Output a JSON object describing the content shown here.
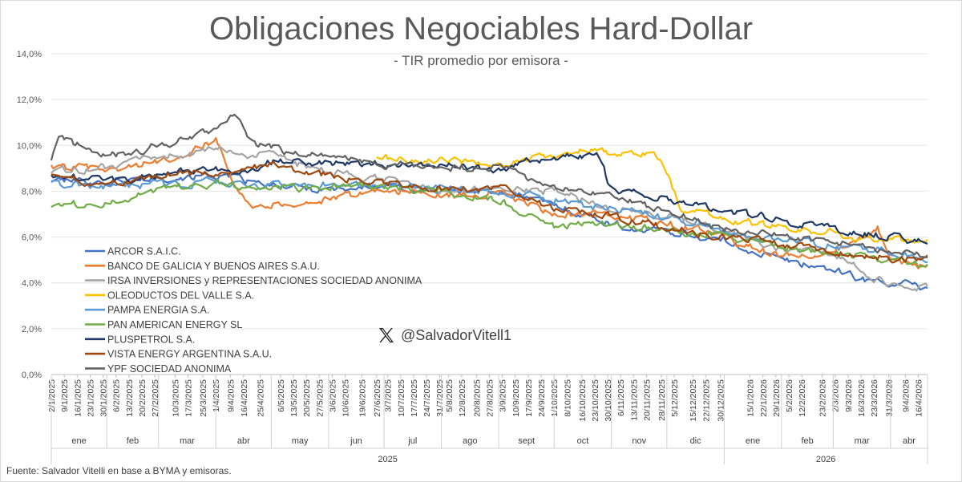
{
  "chart_data": {
    "type": "line",
    "title": "Obligaciones Negociables Hard-Dollar",
    "subtitle": "- TIR promedio por emisora -",
    "ylim": [
      0,
      14
    ],
    "yticks": [
      "0,0%",
      "2,0%",
      "4,0%",
      "6,0%",
      "8,0%",
      "10,0%",
      "12,0%",
      "14,0%"
    ],
    "ytick_values": [
      0,
      2,
      4,
      6,
      8,
      10,
      12,
      14
    ],
    "x_start": "2025-01-02",
    "x_end": "2026-04-21",
    "xticks": [
      "2/1/2025",
      "9/1/2025",
      "16/1/2025",
      "23/1/2025",
      "30/1/2025",
      "6/2/2025",
      "13/2/2025",
      "20/2/2025",
      "27/2/2025",
      "10/3/2025",
      "17/3/2025",
      "25/3/2025",
      "1/4/2025",
      "9/4/2025",
      "16/4/2025",
      "25/4/2025",
      "6/5/2025",
      "13/5/2025",
      "20/5/2025",
      "27/5/2025",
      "3/6/2025",
      "10/6/2025",
      "19/6/2025",
      "27/6/2025",
      "3/7/2025",
      "10/7/2025",
      "17/7/2025",
      "24/7/2025",
      "31/7/2025",
      "5/8/2025",
      "12/8/2025",
      "20/8/2025",
      "27/8/2025",
      "3/9/2025",
      "10/9/2025",
      "17/9/2025",
      "24/9/2025",
      "1/10/2025",
      "8/10/2025",
      "16/10/2025",
      "23/10/2025",
      "30/10/2025",
      "6/11/2025",
      "13/11/2025",
      "20/11/2025",
      "28/11/2025",
      "5/12/2025",
      "15/12/2025",
      "22/12/2025",
      "30/12/2025",
      "15/1/2026",
      "22/1/2026",
      "29/1/2026",
      "5/2/2026",
      "12/2/2026",
      "23/2/2026",
      "2/3/2026",
      "9/3/2026",
      "16/3/2026",
      "23/3/2026",
      "31/3/2026",
      "9/4/2026",
      "16/4/2026"
    ],
    "months": [
      {
        "label": "ene",
        "start": "2025-01-01",
        "end": "2025-02-01"
      },
      {
        "label": "feb",
        "start": "2025-02-01",
        "end": "2025-03-01"
      },
      {
        "label": "mar",
        "start": "2025-03-01",
        "end": "2025-04-01"
      },
      {
        "label": "abr",
        "start": "2025-04-01",
        "end": "2025-05-01"
      },
      {
        "label": "may",
        "start": "2025-05-01",
        "end": "2025-06-01"
      },
      {
        "label": "jun",
        "start": "2025-06-01",
        "end": "2025-07-01"
      },
      {
        "label": "jul",
        "start": "2025-07-01",
        "end": "2025-08-01"
      },
      {
        "label": "ago",
        "start": "2025-08-01",
        "end": "2025-09-01"
      },
      {
        "label": "sept",
        "start": "2025-09-01",
        "end": "2025-10-01"
      },
      {
        "label": "oct",
        "start": "2025-10-01",
        "end": "2025-11-01"
      },
      {
        "label": "nov",
        "start": "2025-11-01",
        "end": "2025-12-01"
      },
      {
        "label": "dic",
        "start": "2025-12-01",
        "end": "2026-01-01"
      },
      {
        "label": "ene",
        "start": "2026-01-01",
        "end": "2026-02-01"
      },
      {
        "label": "feb",
        "start": "2026-02-01",
        "end": "2026-03-01"
      },
      {
        "label": "mar",
        "start": "2026-03-01",
        "end": "2026-04-01"
      },
      {
        "label": "abr",
        "start": "2026-04-01",
        "end": "2026-04-22"
      }
    ],
    "years": [
      {
        "label": "2025",
        "start": "2025-01-01",
        "end": "2026-01-01"
      },
      {
        "label": "2026",
        "start": "2026-01-01",
        "end": "2026-04-22"
      }
    ],
    "series": [
      {
        "name": "ARCOR S.A.I.C.",
        "color": "#4472c4",
        "points": [
          [
            "2025-01-02",
            8.5
          ],
          [
            "2025-02-01",
            8.4
          ],
          [
            "2025-03-01",
            8.6
          ],
          [
            "2025-04-01",
            8.7
          ],
          [
            "2025-05-01",
            8.2
          ],
          [
            "2025-06-01",
            8.1
          ],
          [
            "2025-07-01",
            8.2
          ],
          [
            "2025-08-01",
            8.0
          ],
          [
            "2025-09-01",
            8.0
          ],
          [
            "2025-10-01",
            7.4
          ],
          [
            "2025-11-01",
            6.6
          ],
          [
            "2025-11-15",
            6.3
          ],
          [
            "2025-12-01",
            6.3
          ],
          [
            "2026-01-01",
            5.8
          ],
          [
            "2026-02-01",
            5.0
          ],
          [
            "2026-03-01",
            4.6
          ],
          [
            "2026-03-20",
            4.1
          ],
          [
            "2026-04-01",
            4.0
          ],
          [
            "2026-04-21",
            3.8
          ]
        ]
      },
      {
        "name": "BANCO DE GALICIA Y BUENOS AIRES S.A.U.",
        "color": "#ed7d31",
        "points": [
          [
            "2025-01-02",
            9.1
          ],
          [
            "2025-02-01",
            8.9
          ],
          [
            "2025-03-01",
            9.3
          ],
          [
            "2025-03-20",
            9.8
          ],
          [
            "2025-04-01",
            10.2
          ],
          [
            "2025-04-10",
            8.6
          ],
          [
            "2025-04-20",
            7.4
          ],
          [
            "2025-05-01",
            7.4
          ],
          [
            "2025-06-01",
            7.6
          ],
          [
            "2025-07-01",
            8.1
          ],
          [
            "2025-08-01",
            7.8
          ],
          [
            "2025-09-01",
            7.9
          ],
          [
            "2025-10-01",
            7.0
          ],
          [
            "2025-11-01",
            6.9
          ],
          [
            "2025-12-01",
            6.6
          ],
          [
            "2026-01-01",
            6.0
          ],
          [
            "2026-02-01",
            5.1
          ],
          [
            "2026-03-01",
            5.3
          ],
          [
            "2026-03-25",
            6.4
          ],
          [
            "2026-04-01",
            5.0
          ],
          [
            "2026-04-21",
            4.7
          ]
        ]
      },
      {
        "name": "IRSA INVERSIONES y REPRESENTACIONES SOCIEDAD ANONIMA",
        "color": "#a5a5a5",
        "points": [
          [
            "2025-01-02",
            8.9
          ],
          [
            "2025-02-01",
            9.0
          ],
          [
            "2025-03-01",
            9.5
          ],
          [
            "2025-04-01",
            9.8
          ],
          [
            "2025-05-01",
            9.5
          ],
          [
            "2025-06-01",
            8.8
          ],
          [
            "2025-07-01",
            8.5
          ],
          [
            "2025-08-01",
            8.0
          ],
          [
            "2025-09-01",
            8.1
          ],
          [
            "2025-10-01",
            8.0
          ],
          [
            "2025-11-01",
            7.3
          ],
          [
            "2025-12-01",
            6.9
          ],
          [
            "2026-01-01",
            6.3
          ],
          [
            "2026-02-01",
            5.5
          ],
          [
            "2026-03-01",
            5.2
          ],
          [
            "2026-04-01",
            3.8
          ],
          [
            "2026-04-21",
            3.8
          ]
        ]
      },
      {
        "name": "OLEODUCTOS DEL VALLE S.A.",
        "color": "#ffc000",
        "points": [
          [
            "2025-06-27",
            9.5
          ],
          [
            "2025-07-15",
            9.3
          ],
          [
            "2025-08-01",
            9.3
          ],
          [
            "2025-09-01",
            9.2
          ],
          [
            "2025-10-01",
            9.6
          ],
          [
            "2025-10-20",
            9.8
          ],
          [
            "2025-11-01",
            9.7
          ],
          [
            "2025-11-25",
            9.6
          ],
          [
            "2025-12-01",
            8.8
          ],
          [
            "2025-12-08",
            7.3
          ],
          [
            "2026-01-01",
            6.8
          ],
          [
            "2026-02-01",
            6.4
          ],
          [
            "2026-03-01",
            6.2
          ],
          [
            "2026-03-25",
            5.8
          ],
          [
            "2026-04-01",
            5.9
          ],
          [
            "2026-04-21",
            5.8
          ]
        ]
      },
      {
        "name": "PAMPA ENERGIA S.A.",
        "color": "#5b9bd5",
        "points": [
          [
            "2025-01-02",
            8.3
          ],
          [
            "2025-02-01",
            8.2
          ],
          [
            "2025-03-01",
            8.3
          ],
          [
            "2025-04-01",
            8.4
          ],
          [
            "2025-05-01",
            8.2
          ],
          [
            "2025-06-01",
            8.3
          ],
          [
            "2025-07-01",
            8.3
          ],
          [
            "2025-08-01",
            8.1
          ],
          [
            "2025-09-01",
            8.0
          ],
          [
            "2025-10-01",
            7.6
          ],
          [
            "2025-11-01",
            7.2
          ],
          [
            "2025-12-01",
            6.9
          ],
          [
            "2026-01-01",
            6.3
          ],
          [
            "2026-02-01",
            5.9
          ],
          [
            "2026-03-01",
            5.6
          ],
          [
            "2026-04-01",
            5.3
          ],
          [
            "2026-04-21",
            5.0
          ]
        ]
      },
      {
        "name": "PAN AMERICAN ENERGY SL",
        "color": "#70ad47",
        "points": [
          [
            "2025-01-02",
            7.4
          ],
          [
            "2025-02-01",
            7.5
          ],
          [
            "2025-03-01",
            8.1
          ],
          [
            "2025-04-01",
            8.3
          ],
          [
            "2025-05-01",
            8.1
          ],
          [
            "2025-06-01",
            8.2
          ],
          [
            "2025-07-01",
            8.2
          ],
          [
            "2025-08-01",
            8.0
          ],
          [
            "2025-09-01",
            7.6
          ],
          [
            "2025-10-01",
            6.5
          ],
          [
            "2025-11-01",
            6.6
          ],
          [
            "2025-12-01",
            6.3
          ],
          [
            "2026-01-01",
            6.0
          ],
          [
            "2026-02-01",
            5.6
          ],
          [
            "2026-03-01",
            5.3
          ],
          [
            "2026-04-01",
            5.0
          ],
          [
            "2026-04-21",
            4.7
          ]
        ]
      },
      {
        "name": "PLUSPETROL S.A.",
        "color": "#1f3864",
        "points": [
          [
            "2025-01-02",
            8.7
          ],
          [
            "2025-02-01",
            8.4
          ],
          [
            "2025-03-01",
            8.7
          ],
          [
            "2025-04-01",
            9.0
          ],
          [
            "2025-04-20",
            8.9
          ],
          [
            "2025-05-01",
            9.3
          ],
          [
            "2025-06-01",
            9.2
          ],
          [
            "2025-07-01",
            9.2
          ],
          [
            "2025-08-01",
            9.1
          ],
          [
            "2025-09-01",
            9.0
          ],
          [
            "2025-10-01",
            9.5
          ],
          [
            "2025-10-25",
            9.6
          ],
          [
            "2025-11-01",
            8.0
          ],
          [
            "2025-12-01",
            7.7
          ],
          [
            "2026-01-01",
            7.2
          ],
          [
            "2026-02-01",
            6.7
          ],
          [
            "2026-03-01",
            6.4
          ],
          [
            "2026-04-01",
            6.0
          ],
          [
            "2026-04-21",
            5.8
          ]
        ]
      },
      {
        "name": "VISTA ENERGY ARGENTINA S.A.U.",
        "color": "#9e480e",
        "points": [
          [
            "2025-01-02",
            8.6
          ],
          [
            "2025-02-01",
            8.2
          ],
          [
            "2025-03-01",
            8.7
          ],
          [
            "2025-04-01",
            8.8
          ],
          [
            "2025-05-01",
            9.1
          ],
          [
            "2025-06-01",
            8.7
          ],
          [
            "2025-07-01",
            8.4
          ],
          [
            "2025-08-01",
            8.1
          ],
          [
            "2025-09-01",
            8.1
          ],
          [
            "2025-10-01",
            7.3
          ],
          [
            "2025-11-01",
            6.9
          ],
          [
            "2025-12-01",
            6.4
          ],
          [
            "2026-01-01",
            6.0
          ],
          [
            "2026-02-01",
            5.7
          ],
          [
            "2026-03-01",
            5.4
          ],
          [
            "2026-04-01",
            5.1
          ],
          [
            "2026-04-21",
            5.1
          ]
        ]
      },
      {
        "name": "YPF SOCIEDAD ANONIMA",
        "color": "#636363",
        "points": [
          [
            "2025-01-02",
            9.4
          ],
          [
            "2025-01-05",
            10.4
          ],
          [
            "2025-02-01",
            9.5
          ],
          [
            "2025-03-01",
            10.0
          ],
          [
            "2025-03-20",
            10.4
          ],
          [
            "2025-04-01",
            10.8
          ],
          [
            "2025-04-12",
            11.3
          ],
          [
            "2025-04-20",
            10.1
          ],
          [
            "2025-05-01",
            9.9
          ],
          [
            "2025-06-01",
            9.5
          ],
          [
            "2025-07-01",
            9.2
          ],
          [
            "2025-08-01",
            9.0
          ],
          [
            "2025-09-01",
            9.1
          ],
          [
            "2025-10-01",
            8.2
          ],
          [
            "2025-11-01",
            7.8
          ],
          [
            "2025-12-01",
            7.1
          ],
          [
            "2026-01-01",
            6.4
          ],
          [
            "2026-02-01",
            6.0
          ],
          [
            "2026-03-01",
            5.8
          ],
          [
            "2026-04-01",
            5.4
          ],
          [
            "2026-04-21",
            5.2
          ]
        ]
      }
    ]
  },
  "watermark": {
    "handle": "@SalvadorVitell1"
  },
  "footer": {
    "source": "Fuente: Salvador Vitelli en base a BYMA y emisoras."
  }
}
